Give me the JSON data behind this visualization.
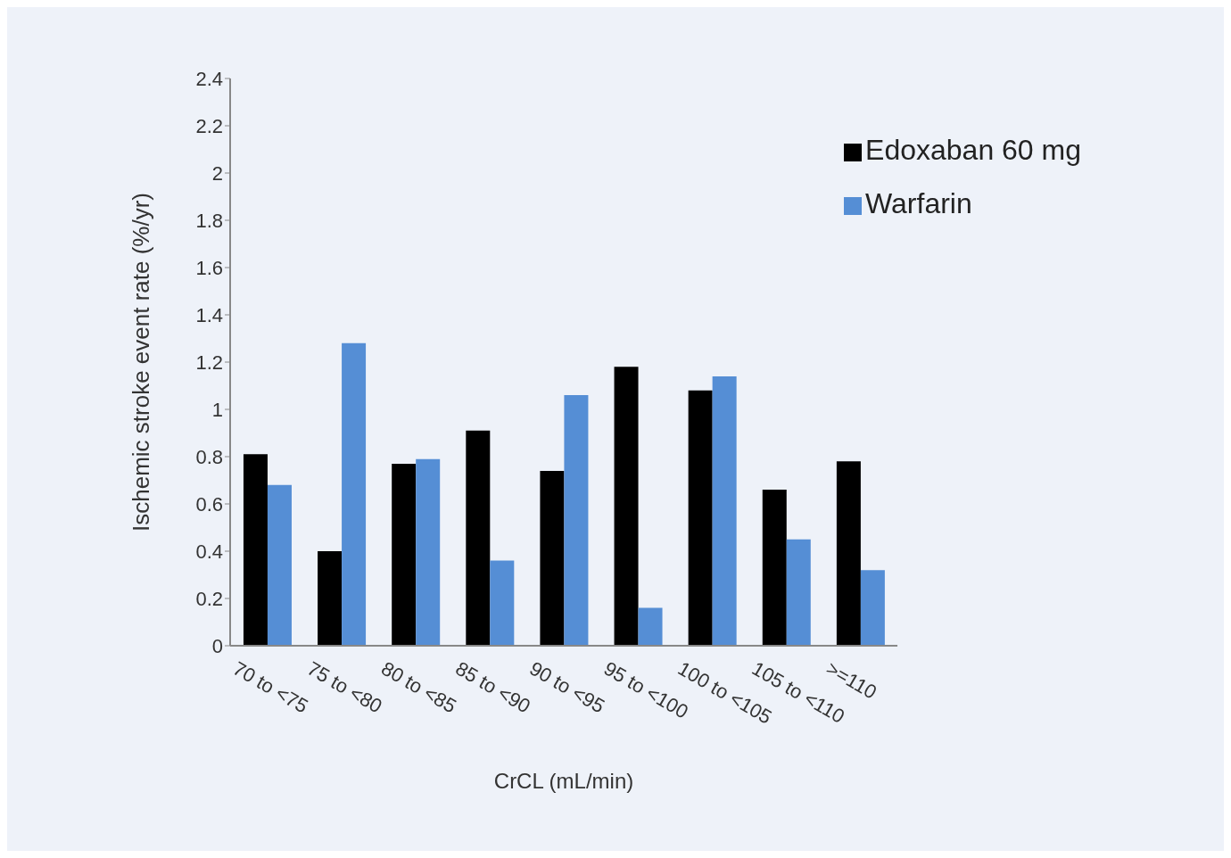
{
  "chart_data": {
    "type": "bar",
    "xlabel": "CrCL (mL/min)",
    "ylabel": "Ischemic stroke event rate (%/yr)",
    "categories": [
      "70 to <75",
      "75 to <80",
      "80 to <85",
      "85 to <90",
      "90 to <95",
      "95 to <100",
      "100 to <105",
      "105 to <110",
      ">=110"
    ],
    "series": [
      {
        "name": "Edoxaban 60 mg",
        "color": "#000000",
        "values": [
          0.81,
          0.4,
          0.77,
          0.91,
          0.74,
          1.18,
          1.08,
          0.66,
          0.78
        ]
      },
      {
        "name": "Warfarin",
        "color": "#558ed5",
        "values": [
          0.68,
          1.28,
          0.79,
          0.36,
          1.06,
          0.16,
          1.14,
          0.45,
          0.32
        ]
      }
    ],
    "ylim": [
      0,
      2.4
    ],
    "yticks": [
      0,
      0.2,
      0.4,
      0.6,
      0.8,
      1,
      1.2,
      1.4,
      1.6,
      1.8,
      2,
      2.2,
      2.4
    ],
    "grid": false,
    "legend": "top right"
  }
}
